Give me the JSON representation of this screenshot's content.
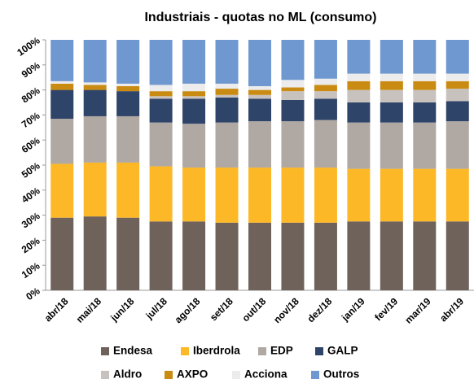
{
  "chart_data": {
    "type": "stacked_bar",
    "title": "Industriais - quotas no ML (consumo)",
    "categories": [
      "abr/18",
      "mai/18",
      "jun/18",
      "jul/18",
      "ago/18",
      "set/18",
      "out/18",
      "nov/18",
      "dez/18",
      "jan/19",
      "fev/19",
      "mar/19",
      "abr/19"
    ],
    "series": [
      {
        "name": "Endesa",
        "color": "#6f625a",
        "values": [
          29,
          29.5,
          29,
          27.5,
          27.5,
          27,
          27,
          27,
          27,
          27.5,
          27.5,
          27.5,
          27.5
        ]
      },
      {
        "name": "Iberdrola",
        "color": "#fdb827",
        "values": [
          21.5,
          21.5,
          22,
          22,
          21.5,
          22,
          22,
          22,
          22,
          21,
          21,
          21,
          21
        ]
      },
      {
        "name": "EDP",
        "color": "#b0a8a2",
        "values": [
          18,
          18.5,
          18.5,
          17.5,
          17.5,
          18,
          18.5,
          18.5,
          19,
          18.5,
          18.5,
          18.5,
          19
        ]
      },
      {
        "name": "GALP",
        "color": "#2e4468",
        "values": [
          11.5,
          10.5,
          10,
          9.5,
          10,
          10,
          9,
          8.5,
          8.5,
          8,
          8,
          8,
          8
        ]
      },
      {
        "name": "Aldro",
        "color": "#c8c2be",
        "values": [
          0,
          0,
          0,
          1,
          1,
          1,
          1.5,
          3.5,
          3,
          5,
          5,
          5,
          5
        ]
      },
      {
        "name": "AXPO",
        "color": "#c98b12",
        "values": [
          2.5,
          2,
          2,
          2,
          2,
          2.5,
          2,
          1.5,
          2.5,
          3.5,
          3.5,
          3.5,
          3
        ]
      },
      {
        "name": "Acciona",
        "color": "#ececec",
        "values": [
          1,
          1,
          1,
          2.5,
          3,
          2,
          1.5,
          3,
          2.5,
          3,
          3,
          3,
          3
        ]
      },
      {
        "name": "Outros",
        "color": "#6f97d0",
        "values": [
          16.5,
          17,
          17.5,
          18,
          17.5,
          17.5,
          18.5,
          16,
          15.5,
          13.5,
          13.5,
          13.5,
          13.5
        ]
      }
    ],
    "ylim": [
      0,
      100
    ],
    "yticks": [
      {
        "value": 0,
        "label": "0%"
      },
      {
        "value": 10,
        "label": "10%"
      },
      {
        "value": 20,
        "label": "20%"
      },
      {
        "value": 30,
        "label": "30%"
      },
      {
        "value": 40,
        "label": "40%"
      },
      {
        "value": 50,
        "label": "50%"
      },
      {
        "value": 60,
        "label": "60%"
      },
      {
        "value": 70,
        "label": "70%"
      },
      {
        "value": 80,
        "label": "80%"
      },
      {
        "value": 90,
        "label": "90%"
      },
      {
        "value": 100,
        "label": "100%"
      }
    ]
  }
}
